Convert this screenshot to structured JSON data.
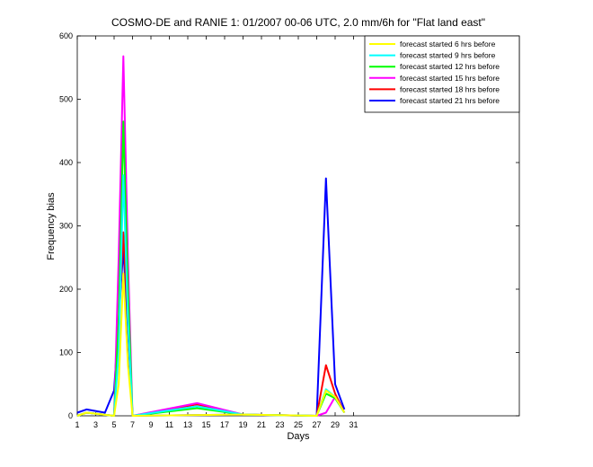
{
  "chart_data": {
    "type": "line",
    "title": "COSMO-DE and RANIE 1: 01/2007 00-06 UTC, 2.0 mm/6h for \"Flat land east\"",
    "xlabel": "Days",
    "ylabel": "Frequency bias",
    "xlim": [
      1,
      49
    ],
    "ylim": [
      0,
      600
    ],
    "x_ticks": [
      1,
      3,
      5,
      7,
      9,
      11,
      13,
      15,
      17,
      19,
      21,
      23,
      25,
      27,
      29,
      31
    ],
    "y_ticks": [
      0,
      100,
      200,
      300,
      400,
      500,
      600
    ],
    "grid": false,
    "legend_position": "top-right",
    "series": [
      {
        "name": "forecast started 6 hrs before",
        "color": "#ffff00",
        "points": [
          [
            1,
            0
          ],
          [
            2,
            5
          ],
          [
            5,
            0
          ],
          [
            5.5,
            50
          ],
          [
            6,
            225
          ],
          [
            6.5,
            80
          ],
          [
            7,
            0
          ],
          [
            19,
            2
          ],
          [
            27,
            0
          ],
          [
            28,
            40
          ],
          [
            29,
            30
          ],
          [
            30,
            5
          ]
        ]
      },
      {
        "name": "forecast started 9 hrs before",
        "color": "#00ffff",
        "points": [
          [
            1,
            0
          ],
          [
            2,
            5
          ],
          [
            5,
            0
          ],
          [
            5.5,
            100
          ],
          [
            6,
            380
          ],
          [
            6.5,
            150
          ],
          [
            7,
            0
          ],
          [
            14,
            15
          ],
          [
            19,
            2
          ],
          [
            27,
            0
          ],
          [
            28,
            42
          ],
          [
            29,
            30
          ],
          [
            30,
            5
          ]
        ]
      },
      {
        "name": "forecast started 12 hrs before",
        "color": "#00ff00",
        "points": [
          [
            1,
            0
          ],
          [
            2,
            5
          ],
          [
            5,
            0
          ],
          [
            5.5,
            150
          ],
          [
            6,
            465
          ],
          [
            6.5,
            200
          ],
          [
            7,
            0
          ],
          [
            14,
            12
          ],
          [
            19,
            2
          ],
          [
            27,
            0
          ],
          [
            28,
            35
          ],
          [
            29,
            28
          ],
          [
            30,
            5
          ]
        ]
      },
      {
        "name": "forecast started 15 hrs before",
        "color": "#ff00ff",
        "points": [
          [
            1,
            0
          ],
          [
            2,
            5
          ],
          [
            5,
            0
          ],
          [
            5.5,
            250
          ],
          [
            6,
            568
          ],
          [
            6.5,
            250
          ],
          [
            7,
            0
          ],
          [
            14,
            20
          ],
          [
            19,
            2
          ],
          [
            27,
            0
          ],
          [
            28,
            5
          ],
          [
            29,
            30
          ],
          [
            30,
            5
          ]
        ]
      },
      {
        "name": "forecast started 18 hrs before",
        "color": "#ff0000",
        "points": [
          [
            1,
            0
          ],
          [
            2,
            5
          ],
          [
            5,
            0
          ],
          [
            5.5,
            150
          ],
          [
            6,
            290
          ],
          [
            6.5,
            150
          ],
          [
            7,
            0
          ],
          [
            14,
            18
          ],
          [
            19,
            2
          ],
          [
            27,
            0
          ],
          [
            28,
            80
          ],
          [
            29,
            35
          ],
          [
            30,
            5
          ]
        ]
      },
      {
        "name": "forecast started 21 hrs before",
        "color": "#0000ff",
        "points": [
          [
            1,
            5
          ],
          [
            2,
            10
          ],
          [
            4,
            5
          ],
          [
            5,
            40
          ],
          [
            6,
            265
          ],
          [
            7,
            0
          ],
          [
            19,
            2
          ],
          [
            26,
            0
          ],
          [
            27,
            0
          ],
          [
            28,
            375
          ],
          [
            29,
            50
          ],
          [
            30,
            10
          ]
        ]
      }
    ]
  }
}
